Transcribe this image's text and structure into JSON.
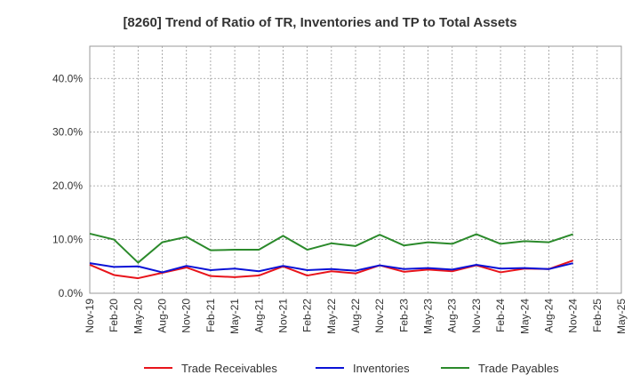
{
  "chart_data": {
    "type": "line",
    "title": "[8260]  Trend of Ratio of TR, Inventories and TP to Total Assets",
    "xlabel": "",
    "ylabel": "",
    "ylim": [
      0,
      46
    ],
    "y_ticks": [
      0,
      10,
      20,
      30,
      40
    ],
    "y_tick_labels": [
      "0.0%",
      "10.0%",
      "20.0%",
      "30.0%",
      "40.0%"
    ],
    "x": [
      "Nov-19",
      "Feb-20",
      "May-20",
      "Aug-20",
      "Nov-20",
      "Feb-21",
      "May-21",
      "Aug-21",
      "Nov-21",
      "Feb-22",
      "May-22",
      "Aug-22",
      "Nov-22",
      "Feb-23",
      "May-23",
      "Aug-23",
      "Nov-23",
      "Feb-24",
      "May-24",
      "Aug-24",
      "Nov-24",
      "Feb-25",
      "May-25"
    ],
    "grid": true,
    "legend_position": "bottom",
    "series": [
      {
        "name": "Trade Receivables",
        "color": "#e8141b",
        "values": [
          5.3,
          3.4,
          2.8,
          3.8,
          4.8,
          3.2,
          3.0,
          3.3,
          5.0,
          3.3,
          4.1,
          3.7,
          5.2,
          4.0,
          4.4,
          4.1,
          5.2,
          3.9,
          4.6,
          4.5,
          6.1,
          null,
          null
        ]
      },
      {
        "name": "Inventories",
        "color": "#0a12d6",
        "values": [
          5.6,
          4.9,
          5.0,
          3.9,
          5.1,
          4.3,
          4.6,
          4.1,
          5.1,
          4.3,
          4.5,
          4.2,
          5.2,
          4.5,
          4.7,
          4.4,
          5.3,
          4.6,
          4.7,
          4.5,
          5.6,
          null,
          null
        ]
      },
      {
        "name": "Trade Payables",
        "color": "#2b8a2b",
        "values": [
          11.1,
          10.0,
          5.7,
          9.5,
          10.5,
          8.0,
          8.1,
          8.1,
          10.7,
          8.1,
          9.3,
          8.8,
          10.9,
          8.9,
          9.5,
          9.2,
          11.0,
          9.2,
          9.7,
          9.5,
          11.0,
          null,
          null
        ]
      }
    ]
  }
}
